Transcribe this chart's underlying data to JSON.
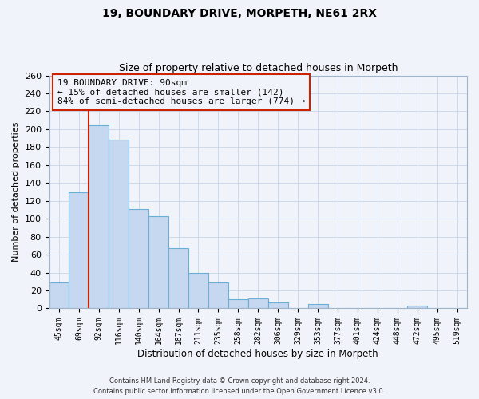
{
  "title": "19, BOUNDARY DRIVE, MORPETH, NE61 2RX",
  "subtitle": "Size of property relative to detached houses in Morpeth",
  "xlabel": "Distribution of detached houses by size in Morpeth",
  "ylabel": "Number of detached properties",
  "bin_labels": [
    "45sqm",
    "69sqm",
    "92sqm",
    "116sqm",
    "140sqm",
    "164sqm",
    "187sqm",
    "211sqm",
    "235sqm",
    "258sqm",
    "282sqm",
    "306sqm",
    "329sqm",
    "353sqm",
    "377sqm",
    "401sqm",
    "424sqm",
    "448sqm",
    "472sqm",
    "495sqm",
    "519sqm"
  ],
  "bar_heights": [
    29,
    130,
    204,
    188,
    111,
    103,
    67,
    40,
    29,
    10,
    11,
    7,
    0,
    5,
    0,
    0,
    0,
    0,
    3,
    0,
    0
  ],
  "bar_color": "#c5d8ef",
  "bar_edge_color": "#6baed6",
  "property_line_bin_idx": 2,
  "property_line_color": "#cc2200",
  "ylim": [
    0,
    260
  ],
  "yticks": [
    0,
    20,
    40,
    60,
    80,
    100,
    120,
    140,
    160,
    180,
    200,
    220,
    240,
    260
  ],
  "annotation_line1": "19 BOUNDARY DRIVE: 90sqm",
  "annotation_line2": "← 15% of detached houses are smaller (142)",
  "annotation_line3": "84% of semi-detached houses are larger (774) →",
  "ann_box_color": "#cc2200",
  "footer_line1": "Contains HM Land Registry data © Crown copyright and database right 2024.",
  "footer_line2": "Contains public sector information licensed under the Open Government Licence v3.0.",
  "background_color": "#f0f4fa",
  "grid_color": "#c8d4e8"
}
